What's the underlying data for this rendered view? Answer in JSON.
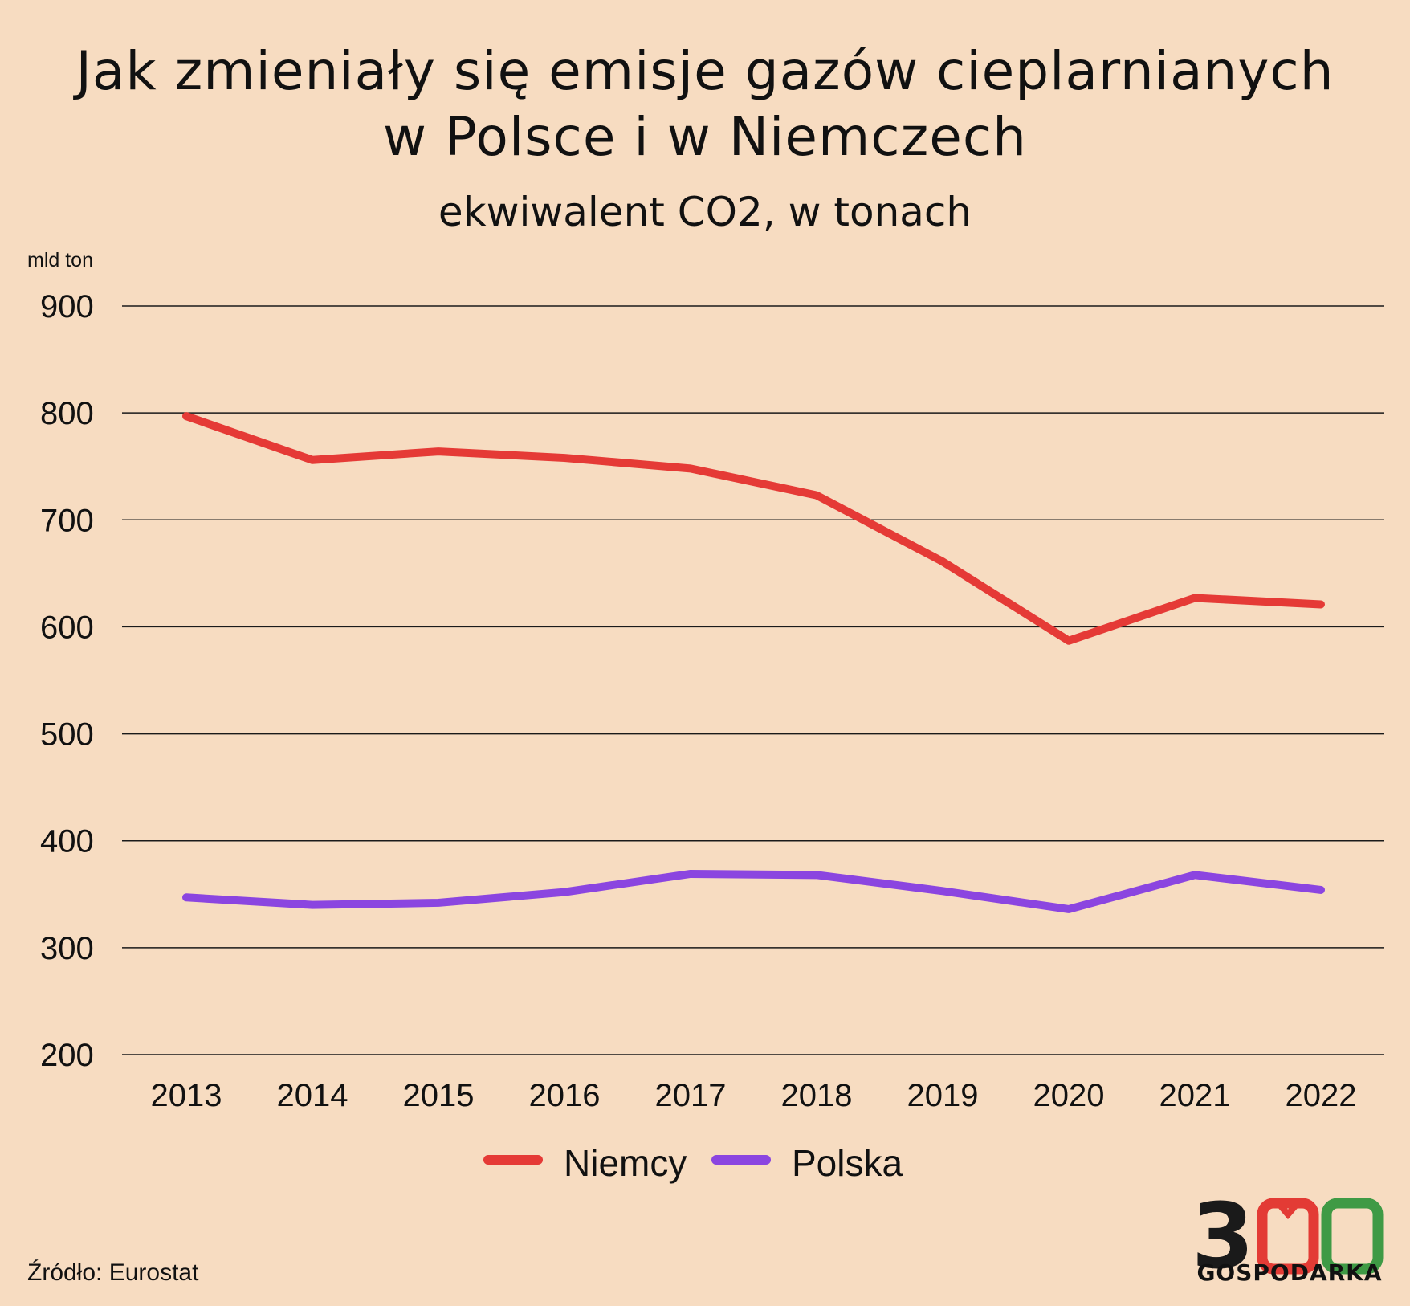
{
  "header": {
    "title_line1": "Jak zmieniały się emisje gazów cieplarnianych",
    "title_line2": "w Polsce i w Niemczech",
    "subtitle": "ekwiwalent CO2, w tonach"
  },
  "footer": {
    "source": "Źródło: Eurostat",
    "logo_text": "GOSPODARKA",
    "logo_digits": "300",
    "logo_colors": [
      "#1a1a1a",
      "#e33b35",
      "#3f9a45"
    ]
  },
  "chart_data": {
    "type": "line",
    "y_unit_label": "mld ton",
    "x": [
      "2013",
      "2014",
      "2015",
      "2016",
      "2017",
      "2018",
      "2019",
      "2020",
      "2021",
      "2022"
    ],
    "ylim": [
      200,
      900
    ],
    "yticks": [
      "900",
      "800",
      "700",
      "600",
      "500",
      "400",
      "300",
      "200"
    ],
    "grid": "horizontal",
    "legend_position": "bottom-center",
    "series": [
      {
        "name": "Niemcy",
        "color": "#e53a36",
        "values": [
          797,
          756,
          764,
          758,
          748,
          723,
          661,
          587,
          627,
          621
        ]
      },
      {
        "name": "Polska",
        "color": "#8b45e0",
        "values": [
          347,
          340,
          342,
          352,
          369,
          368,
          353,
          336,
          368,
          354
        ]
      }
    ]
  }
}
